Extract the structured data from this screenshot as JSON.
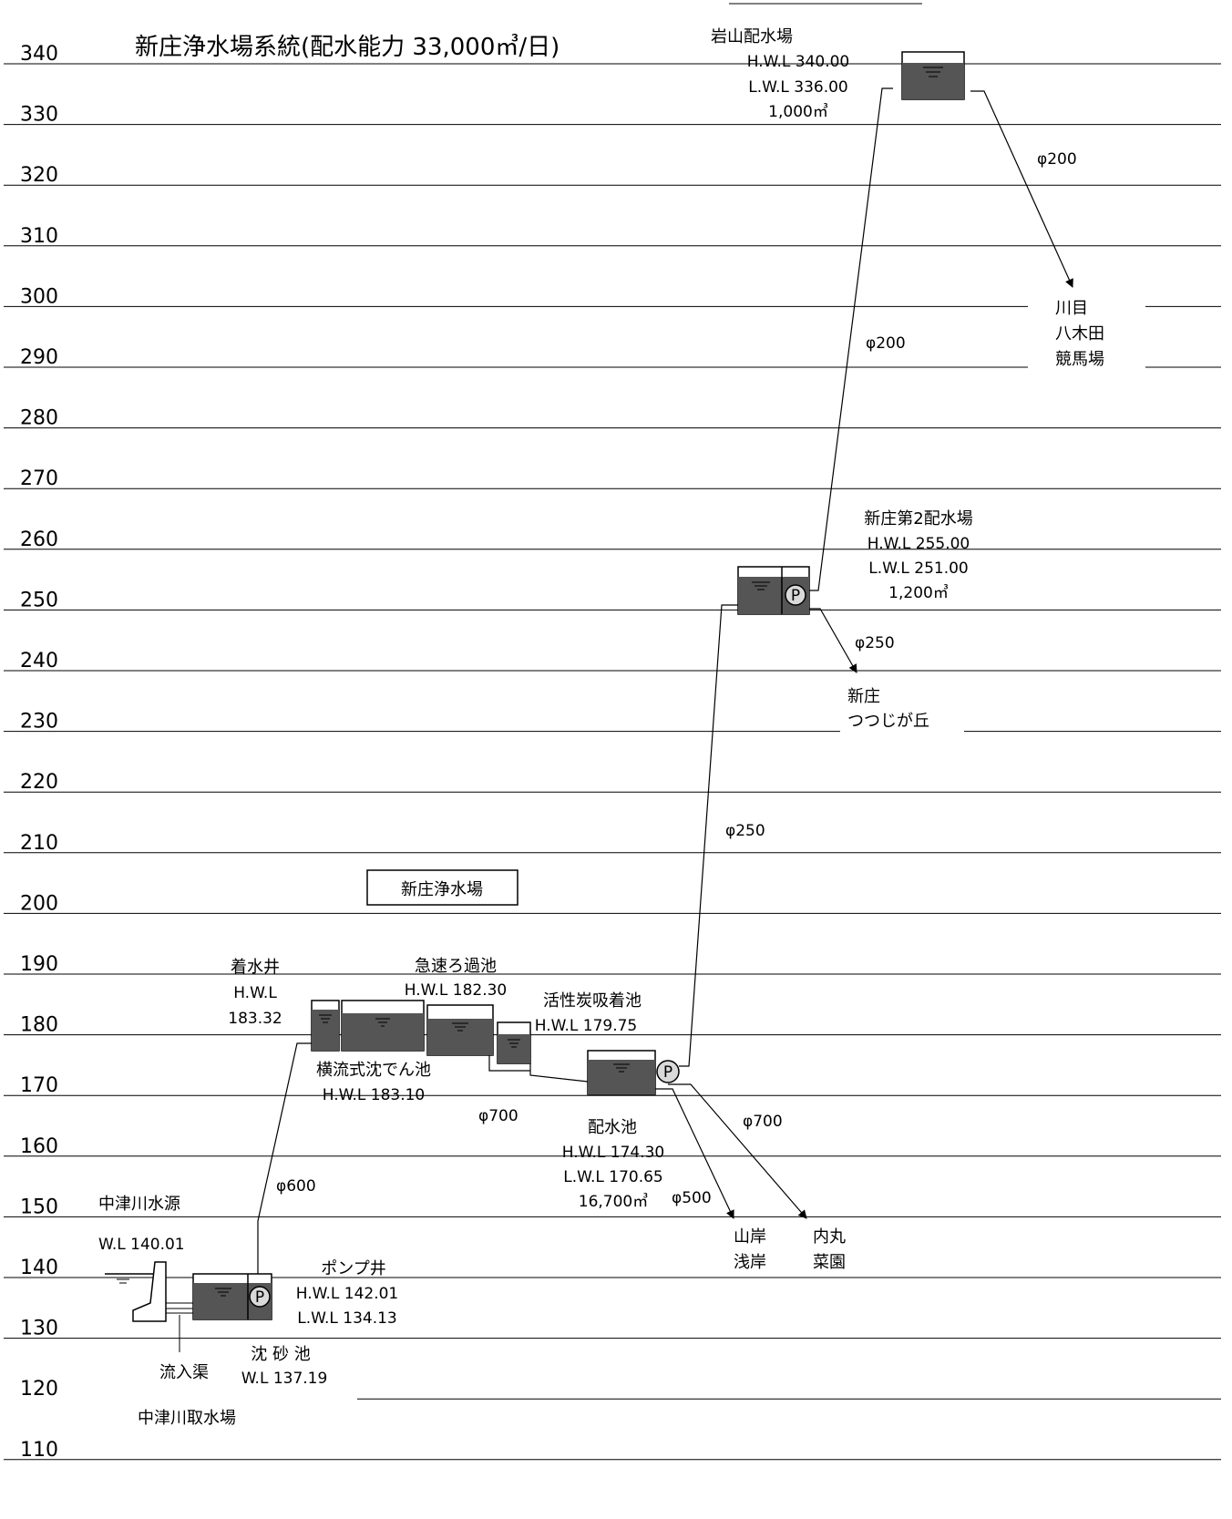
{
  "title": "新庄浄水場系統(配水能力 33,000㎥/日)",
  "y_axis": {
    "ticks": [
      340,
      330,
      320,
      310,
      300,
      290,
      280,
      270,
      260,
      250,
      240,
      230,
      220,
      210,
      200,
      190,
      180,
      170,
      160,
      150,
      140,
      130,
      120,
      110
    ]
  },
  "colors": {
    "water": "#555555",
    "line": "#000000",
    "pump_fill": "#d9d9d9"
  },
  "plant_name": "新庄浄水場",
  "source": {
    "name": "中津川水源",
    "wl": "W.L 140.01"
  },
  "intake": {
    "channel": "流入渠",
    "sand_basin": "沈 砂 池",
    "sand_wl": "W.L 137.19",
    "station": "中津川取水場"
  },
  "pump_well": {
    "name": "ポンプ井",
    "hwl": "H.W.L 142.01",
    "lwl": "L.W.L 134.13"
  },
  "receiving_well": {
    "name": "着水井",
    "hwl_label": "H.W.L",
    "hwl": "183.32"
  },
  "sedimentation": {
    "name": "横流式沈でん池",
    "hwl": "H.W.L 183.10"
  },
  "rapid_filter": {
    "name": "急速ろ過池",
    "hwl": "H.W.L 182.30"
  },
  "carbon": {
    "name": "活性炭吸着池",
    "hwl": "H.W.L 179.75"
  },
  "distribution_pond": {
    "name": "配水池",
    "hwl": "H.W.L 174.30",
    "lwl": "L.W.L 170.65",
    "capacity": "16,700㎥"
  },
  "shinjo2": {
    "name": "新庄第2配水場",
    "hwl": "H.W.L 255.00",
    "lwl": "L.W.L 251.00",
    "capacity": "1,200㎥"
  },
  "iwayama": {
    "name": "岩山配水場",
    "hwl": "H.W.L 340.00",
    "lwl": "L.W.L 336.00",
    "capacity": "1,000㎥"
  },
  "pipes": {
    "p600": "φ600",
    "p700a": "φ700",
    "p700b": "φ700",
    "p500": "φ500",
    "p250a": "φ250",
    "p250b": "φ250",
    "p200a": "φ200",
    "p200b": "φ200"
  },
  "areas": {
    "kawame": [
      "川目",
      "八木田",
      "競馬場"
    ],
    "tsutsuji": [
      "新庄",
      "つつじが丘"
    ],
    "yamagishi": [
      "山岸",
      "浅岸"
    ],
    "uchimaru": [
      "内丸",
      "菜園"
    ]
  },
  "pump_symbol": "P"
}
